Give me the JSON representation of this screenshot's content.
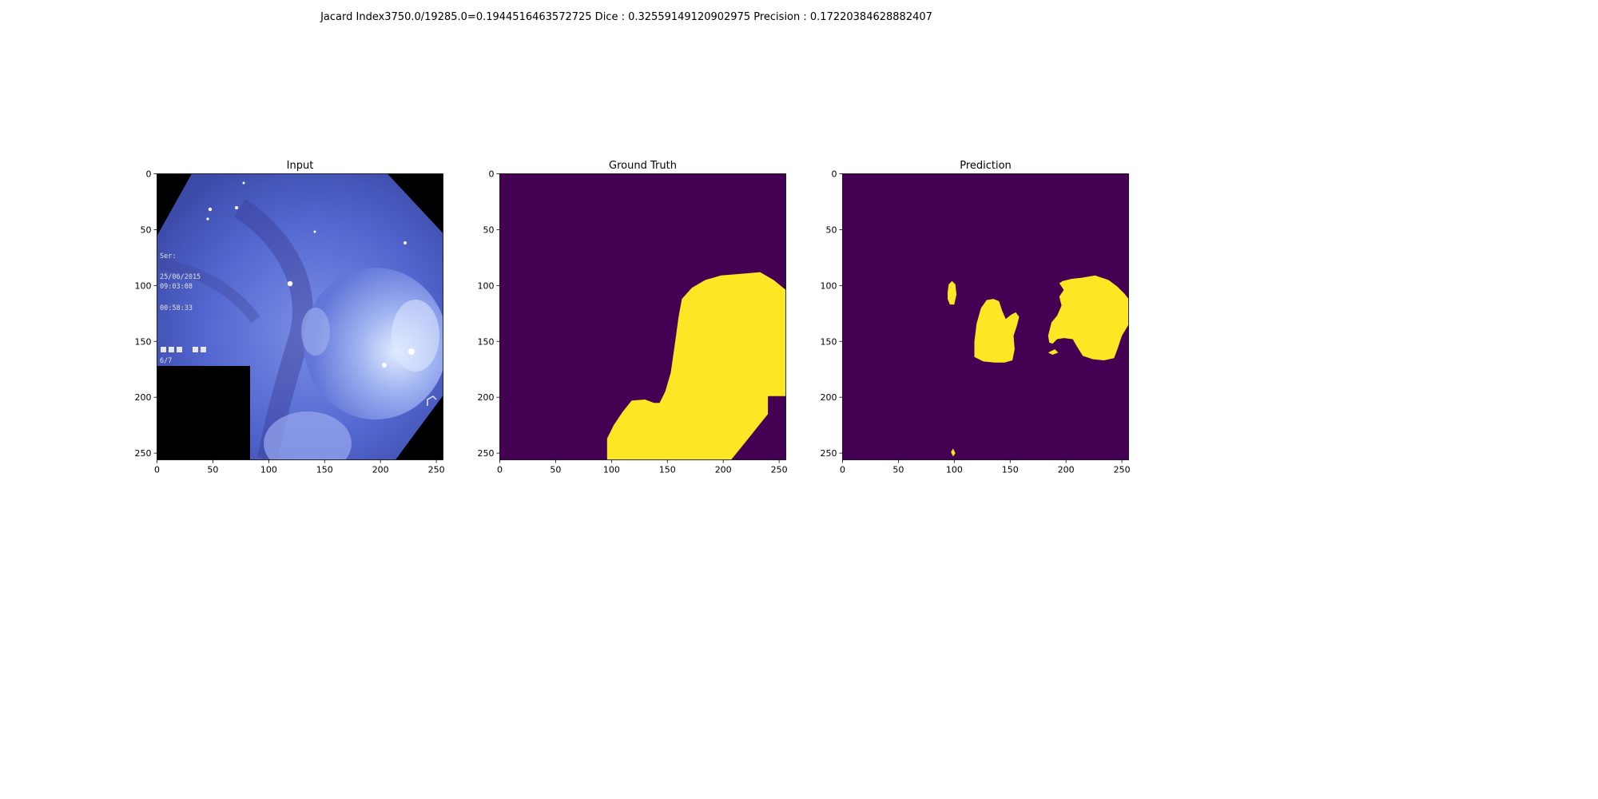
{
  "figure": {
    "suptitle": "Jacard Index3750.0/19285.0=0.1944516463572725 Dice : 0.32559149120902975 Precision : 0.17220384628882407"
  },
  "chart_data": [
    {
      "type": "image",
      "title": "Input",
      "xlim": [
        0,
        256
      ],
      "ylim": [
        256,
        0
      ],
      "xticks": [
        0,
        50,
        100,
        150,
        200,
        250
      ],
      "yticks": [
        0,
        50,
        100,
        150,
        200,
        250
      ],
      "image": {
        "description": "endoscopic image in blue tones with black octagonal corners",
        "overlay_text": [
          "Ser:",
          "25/06/2015",
          "09:03:08",
          "00:58:33",
          "6/7"
        ]
      }
    },
    {
      "type": "heatmap",
      "title": "Ground Truth",
      "xlim": [
        0,
        256
      ],
      "ylim": [
        256,
        0
      ],
      "xticks": [
        0,
        50,
        100,
        150,
        200,
        250
      ],
      "yticks": [
        0,
        50,
        100,
        150,
        200,
        250
      ],
      "colormap": {
        "background": "#440154",
        "foreground": "#fde725"
      },
      "regions": [
        {
          "label": "mask",
          "polygon": [
            [
              96,
              256
            ],
            [
              96,
              237
            ],
            [
              102,
              225
            ],
            [
              110,
              213
            ],
            [
              118,
              203
            ],
            [
              130,
              202
            ],
            [
              138,
              205
            ],
            [
              143,
              205
            ],
            [
              148,
              195
            ],
            [
              153,
              178
            ],
            [
              157,
              150
            ],
            [
              160,
              128
            ],
            [
              163,
              112
            ],
            [
              172,
              102
            ],
            [
              184,
              95
            ],
            [
              198,
              91
            ],
            [
              222,
              89
            ],
            [
              233,
              88
            ],
            [
              245,
              95
            ],
            [
              256,
              104
            ],
            [
              256,
              199
            ],
            [
              240,
              199
            ],
            [
              240,
              215
            ],
            [
              232,
              225
            ],
            [
              220,
              240
            ],
            [
              207,
              256
            ]
          ]
        }
      ]
    },
    {
      "type": "heatmap",
      "title": "Prediction",
      "xlim": [
        0,
        256
      ],
      "ylim": [
        256,
        0
      ],
      "xticks": [
        0,
        50,
        100,
        150,
        200,
        250
      ],
      "yticks": [
        0,
        50,
        100,
        150,
        200,
        250
      ],
      "colormap": {
        "background": "#440154",
        "foreground": "#fde725"
      },
      "regions": [
        {
          "label": "blob-a",
          "polygon": [
            [
              94,
              106
            ],
            [
              95,
              99
            ],
            [
              98,
              96
            ],
            [
              101,
              99
            ],
            [
              102,
              108
            ],
            [
              100,
              117
            ],
            [
              96,
              117
            ],
            [
              94,
              112
            ]
          ]
        },
        {
          "label": "blob-b",
          "polygon": [
            [
              118,
              150
            ],
            [
              120,
              134
            ],
            [
              124,
              120
            ],
            [
              129,
              113
            ],
            [
              135,
              112
            ],
            [
              140,
              114
            ],
            [
              143,
              123
            ],
            [
              146,
              130
            ],
            [
              151,
              126
            ],
            [
              155,
              124
            ],
            [
              158,
              128
            ],
            [
              156,
              136
            ],
            [
              153,
              145
            ],
            [
              154,
              157
            ],
            [
              152,
              167
            ],
            [
              145,
              169
            ],
            [
              136,
              169
            ],
            [
              126,
              168
            ],
            [
              118,
              164
            ]
          ]
        },
        {
          "label": "blob-c",
          "polygon": [
            [
              184,
              145
            ],
            [
              187,
              133
            ],
            [
              192,
              127
            ],
            [
              196,
              118
            ],
            [
              194,
              110
            ],
            [
              198,
              104
            ],
            [
              194,
              98
            ],
            [
              197,
              96
            ],
            [
              205,
              94
            ],
            [
              214,
              93
            ],
            [
              226,
              91
            ],
            [
              238,
              95
            ],
            [
              246,
              101
            ],
            [
              252,
              107
            ],
            [
              256,
              112
            ],
            [
              256,
              135
            ],
            [
              250,
              145
            ],
            [
              246,
              157
            ],
            [
              243,
              165
            ],
            [
              234,
              167
            ],
            [
              224,
              166
            ],
            [
              215,
              163
            ],
            [
              210,
              155
            ],
            [
              206,
              148
            ],
            [
              198,
              147
            ],
            [
              192,
              148
            ],
            [
              188,
              152
            ],
            [
              185,
              151
            ]
          ]
        },
        {
          "label": "blob-d",
          "polygon": [
            [
              184,
              160
            ],
            [
              190,
              157
            ],
            [
              193,
              160
            ],
            [
              188,
              162
            ]
          ]
        },
        {
          "label": "blob-e",
          "polygon": [
            [
              97,
              249
            ],
            [
              99,
              246
            ],
            [
              101,
              250
            ],
            [
              99,
              253
            ]
          ]
        }
      ]
    }
  ]
}
